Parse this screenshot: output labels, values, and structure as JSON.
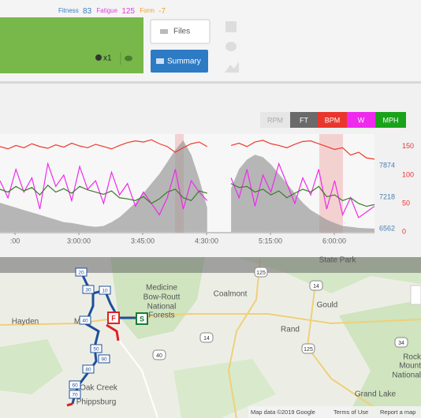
{
  "header": {
    "fitness_label": "Fitness",
    "fitness": 83,
    "fatigue_label": "Fatigue",
    "fatigue": 125,
    "form_label": "Form",
    "form": -7,
    "count": "x1",
    "files": "Files",
    "summary": "Summary"
  },
  "chart": {
    "type": "line",
    "toggles": [
      "RPM",
      "FT",
      "BPM",
      "W",
      "MPH"
    ],
    "xlim": [
      7467,
      23300
    ],
    "xticks": [
      {
        "value": 8100,
        "label": ":00"
      },
      {
        "value": 10800,
        "label": "3:00:00"
      },
      {
        "value": 13500,
        "label": "3:45:00"
      },
      {
        "value": 16200,
        "label": "4:30:00"
      },
      {
        "value": 18900,
        "label": "5:15:00"
      },
      {
        "value": 21600,
        "label": "6:00:00"
      }
    ],
    "ylim": [
      0,
      172
    ],
    "yticks": [
      0,
      50,
      100,
      150
    ],
    "y2lim": [
      6496,
      8530
    ],
    "y2ticks": [
      6562,
      7218,
      7874
    ],
    "series": [
      {
        "color": "#9a9a9a",
        "axis": "y2",
        "fill": true,
        "values": [
          7100,
          7050,
          7000,
          6950,
          6900,
          6850,
          6800,
          6750,
          6700,
          6680,
          6650,
          6620,
          6600,
          6620,
          6700,
          6800,
          6950,
          7100,
          7300,
          7500,
          7700,
          7950,
          8200,
          8400,
          8100,
          7600,
          7000,
          null,
          null,
          7400,
          7800,
          8000,
          8100,
          8050,
          7900,
          7700,
          7500,
          7300,
          7100,
          6950,
          6850,
          6750,
          6680,
          6620,
          6600,
          6580,
          6570,
          6565
        ]
      },
      {
        "color": "#ee3a2e",
        "values": [
          150,
          146,
          152,
          148,
          155,
          150,
          147,
          153,
          149,
          156,
          151,
          148,
          154,
          150,
          146,
          152,
          157,
          160,
          158,
          162,
          155,
          150,
          140,
          148,
          155,
          158,
          150,
          null,
          null,
          152,
          156,
          150,
          158,
          161,
          155,
          152,
          148,
          154,
          159,
          160,
          155,
          150,
          145,
          148,
          135,
          140,
          130,
          128
        ]
      },
      {
        "color": "#ee2aee",
        "values": [
          90,
          60,
          110,
          70,
          95,
          40,
          120,
          80,
          100,
          55,
          115,
          75,
          90,
          50,
          105,
          65,
          85,
          45,
          70,
          50,
          30,
          60,
          110,
          40,
          90,
          70,
          55,
          null,
          null,
          95,
          60,
          110,
          45,
          100,
          70,
          120,
          85,
          50,
          95,
          65,
          110,
          40,
          90,
          30,
          60,
          25,
          35,
          45
        ]
      },
      {
        "color": "#3d7a2a",
        "values": [
          75,
          70,
          80,
          72,
          78,
          65,
          82,
          70,
          76,
          68,
          80,
          74,
          70,
          66,
          72,
          60,
          58,
          55,
          62,
          50,
          58,
          70,
          75,
          60,
          55,
          72,
          68,
          null,
          null,
          85,
          78,
          80,
          70,
          75,
          65,
          72,
          60,
          68,
          75,
          70,
          80,
          62,
          65,
          55,
          60,
          50,
          45,
          48
        ]
      }
    ]
  },
  "map": {
    "state_park": "State Park",
    "forest": [
      "Medicine",
      "Bow-Routt",
      "National",
      "Forests"
    ],
    "towns": [
      "Coalmont",
      "Gould",
      "Hayden",
      "M",
      "Rand",
      "Grand Lake",
      "Oak Creek",
      "Phippsburg"
    ],
    "rocky": [
      "Rock",
      "Mount",
      "National"
    ],
    "shields": [
      "125",
      "14",
      "14",
      "40",
      "125",
      "34"
    ],
    "route_badges": [
      "20",
      "30",
      "10",
      "40",
      "50",
      "90",
      "80",
      "60",
      "70"
    ],
    "finish": "F",
    "start": "S",
    "footer": [
      "Map data ©2019 Google",
      "Terms of Use",
      "Report a map"
    ]
  }
}
